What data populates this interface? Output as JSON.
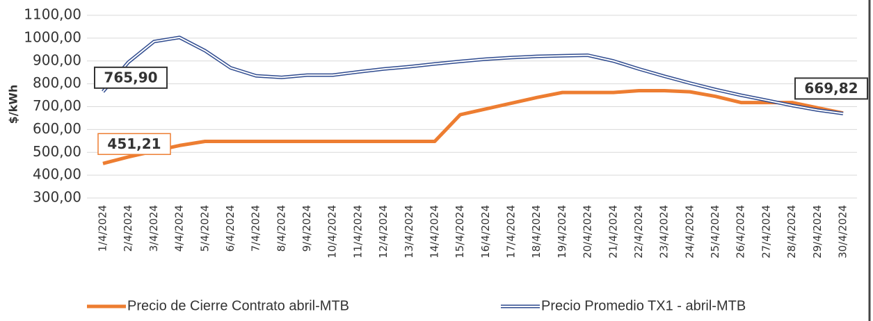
{
  "chart_data": {
    "type": "line",
    "ylabel": "$/kWh",
    "categories": [
      "1/4/2024",
      "2/4/2024",
      "3/4/2024",
      "4/4/2024",
      "5/4/2024",
      "6/4/2024",
      "7/4/2024",
      "8/4/2024",
      "9/4/2024",
      "10/4/2024",
      "11/4/2024",
      "12/4/2024",
      "13/4/2024",
      "14/4/2024",
      "15/4/2024",
      "16/4/2024",
      "17/4/2024",
      "18/4/2024",
      "19/4/2024",
      "20/4/2024",
      "21/4/2024",
      "22/4/2024",
      "23/4/2024",
      "24/4/2024",
      "25/4/2024",
      "26/4/2024",
      "27/4/2024",
      "28/4/2024",
      "29/4/2024",
      "30/4/2024"
    ],
    "series": [
      {
        "name": "Precio de Cierre Contrato abril-MTB",
        "color": "#ED7D31",
        "values": [
          451.21,
          480,
          505,
          530,
          548,
          548,
          548,
          548,
          548,
          548,
          548,
          548,
          548,
          548,
          665,
          690,
          715,
          740,
          762,
          762,
          762,
          770,
          770,
          765,
          745,
          718,
          718,
          718,
          695,
          672
        ],
        "value_labels": [
          "451,21",
          null,
          null,
          null,
          null,
          null,
          null,
          null,
          null,
          null,
          null,
          null,
          null,
          null,
          null,
          null,
          null,
          null,
          null,
          null,
          null,
          null,
          null,
          null,
          null,
          null,
          null,
          null,
          null,
          null
        ]
      },
      {
        "name": "Precio Promedio TX1 - abril-MTB",
        "color": "#2F4B8F",
        "values": [
          765.9,
          895,
          985,
          1003,
          945,
          870,
          835,
          828,
          838,
          838,
          852,
          865,
          875,
          887,
          898,
          908,
          915,
          920,
          923,
          925,
          900,
          865,
          833,
          803,
          775,
          750,
          728,
          705,
          685,
          669.82
        ],
        "value_labels": [
          "765,90",
          null,
          null,
          null,
          null,
          null,
          null,
          null,
          null,
          null,
          null,
          null,
          null,
          null,
          null,
          null,
          null,
          null,
          null,
          null,
          null,
          null,
          null,
          null,
          null,
          null,
          null,
          null,
          null,
          "669,82"
        ]
      }
    ],
    "ylim": [
      300,
      1100
    ],
    "yticks": [
      {
        "value": 300,
        "label": "300,00"
      },
      {
        "value": 400,
        "label": "400,00"
      },
      {
        "value": 500,
        "label": "500,00"
      },
      {
        "value": 600,
        "label": "600,00"
      },
      {
        "value": 700,
        "label": "700,00"
      },
      {
        "value": 800,
        "label": "800,00"
      },
      {
        "value": 900,
        "label": "900,00"
      },
      {
        "value": 1000,
        "label": "1000,00"
      },
      {
        "value": 1100,
        "label": "1100,00"
      }
    ],
    "grid": true,
    "legend": "bottom"
  }
}
